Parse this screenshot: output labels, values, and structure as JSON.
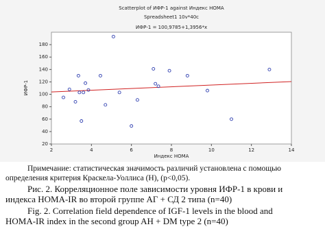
{
  "chart_data": {
    "type": "scatter",
    "title": "Scatterplot of ИФР-1 against Индекс HOMA",
    "subtitle": "Spreadsheet1 10v*40c",
    "annotation": "ИФР-1 = 100,9785+1,3956*x",
    "x_label": "Индекс HOMA",
    "y_label": "ИФР-1",
    "x": [
      2.6,
      2.9,
      3.2,
      3.35,
      3.4,
      3.5,
      3.6,
      3.7,
      3.85,
      4.45,
      4.7,
      5.1,
      5.4,
      6.0,
      6.3,
      7.1,
      7.2,
      7.35,
      7.9,
      8.8,
      9.8,
      11.0,
      12.9
    ],
    "values": [
      95,
      108,
      88,
      130,
      103,
      57,
      103,
      118,
      107,
      130,
      83,
      193,
      103,
      49,
      91,
      141,
      117,
      113,
      138,
      130,
      106,
      60,
      140
    ],
    "color": "#2f3fb0",
    "regression": {
      "intercept": 100.9785,
      "slope": 1.3956,
      "color": "#d02020"
    },
    "xlim": [
      2,
      14
    ],
    "xticks": [
      2,
      4,
      6,
      8,
      10,
      12,
      14
    ],
    "ylim": [
      20,
      200
    ],
    "yticks": [
      20,
      40,
      60,
      80,
      100,
      120,
      140,
      160,
      180
    ]
  },
  "note": [
    "Примечание: статистическая значимость различий установлена с помощью",
    "определения критерия Краскела-Уоллиса (Н), (р<0,05)."
  ],
  "caption_ru": [
    "Рис. 2. Корреляционное поле зависимости уровня ИФР-1 в крови и",
    "индекса HOMA-IR во второй группе АГ + СД 2 типа (n=40)"
  ],
  "caption_en": [
    "Fig. 2. Correlation field dependence of IGF-1 levels in the blood and",
    "HOMA-IR index in the second group AH + DM type 2 (n=40)"
  ]
}
